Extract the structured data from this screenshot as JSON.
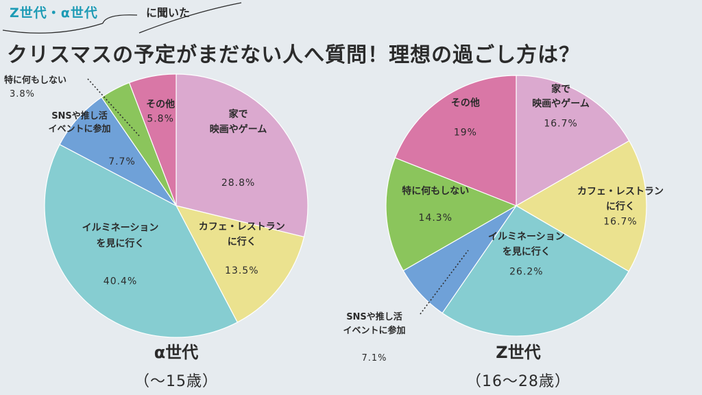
{
  "header": {
    "kicker_primary": "Z世代・α世代",
    "kicker_suffix": "に聞いた",
    "title": "クリスマスの予定がまだない人へ質問！理想の過ごし方は？"
  },
  "colors": {
    "home": "#dba9cf",
    "cafe": "#ebe28f",
    "illumination": "#86cdd1",
    "sns": "#6fa1d8",
    "nothing": "#8bc55c",
    "other": "#d977a6"
  },
  "chart_data": [
    {
      "type": "pie",
      "name": "α世代",
      "subtitle": "（〜15歳）",
      "slices": [
        {
          "key": "home",
          "label": "家で\n映画やゲーム",
          "value": 28.8,
          "value_text": "28.8%"
        },
        {
          "key": "cafe",
          "label": "カフェ・レストラン\nに行く",
          "value": 13.5,
          "value_text": "13.5%"
        },
        {
          "key": "illumination",
          "label": "イルミネーション\nを見に行く",
          "value": 40.4,
          "value_text": "40.4%"
        },
        {
          "key": "sns",
          "label": "SNSや推し活\nイベントに参加",
          "value": 7.7,
          "value_text": "7.7%"
        },
        {
          "key": "nothing",
          "label": "特に何もしない",
          "value": 3.8,
          "value_text": "3.8%"
        },
        {
          "key": "other",
          "label": "その他",
          "value": 5.8,
          "value_text": "5.8%"
        }
      ]
    },
    {
      "type": "pie",
      "name": "Z世代",
      "subtitle": "（16〜28歳）",
      "slices": [
        {
          "key": "home",
          "label": "家で\n映画やゲーム",
          "value": 16.7,
          "value_text": "16.7%"
        },
        {
          "key": "cafe",
          "label": "カフェ・レストラン\nに行く",
          "value": 16.7,
          "value_text": "16.7%"
        },
        {
          "key": "illumination",
          "label": "イルミネーション\nを見に行く",
          "value": 26.2,
          "value_text": "26.2%"
        },
        {
          "key": "sns",
          "label": "SNSや推し活\nイベントに参加",
          "value": 7.1,
          "value_text": "7.1%"
        },
        {
          "key": "nothing",
          "label": "特に何もしない",
          "value": 14.3,
          "value_text": "14.3%"
        },
        {
          "key": "other",
          "label": "その他",
          "value": 19,
          "value_text": "19%"
        }
      ]
    }
  ]
}
